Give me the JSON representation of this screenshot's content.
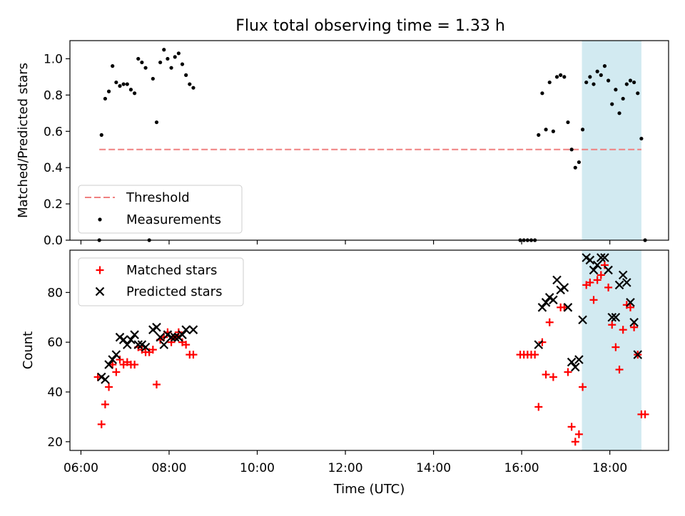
{
  "title": "Flux total observing time = 1.33 h",
  "colors": {
    "threshold": "#f08080",
    "measurement": "#000000",
    "matched": "#ff0000",
    "predicted": "#000000",
    "highlight": "#add8e6"
  },
  "chart_data": [
    {
      "type": "scatter",
      "ylabel": "Matched/Predicted stars",
      "ylim": [
        0,
        1.1
      ],
      "yticks": [
        0.0,
        0.2,
        0.4,
        0.6,
        0.8,
        1.0
      ],
      "ytick_labels": [
        "0.0",
        "0.2",
        "0.4",
        "0.6",
        "0.8",
        "1.0"
      ],
      "xlim": [
        "05:45",
        "19:20"
      ],
      "highlight_span": [
        "17:22",
        "18:43"
      ],
      "legend_position": "lower-left",
      "threshold": {
        "name": "Threshold",
        "value": 0.5,
        "x_range": [
          "06:25",
          "18:43"
        ]
      },
      "series": [
        {
          "name": "Measurements",
          "marker": "dot",
          "points": [
            [
              "06:25",
              0.0
            ],
            [
              "06:28",
              0.58
            ],
            [
              "06:33",
              0.78
            ],
            [
              "06:38",
              0.82
            ],
            [
              "06:43",
              0.96
            ],
            [
              "06:48",
              0.87
            ],
            [
              "06:53",
              0.85
            ],
            [
              "06:58",
              0.86
            ],
            [
              "07:03",
              0.86
            ],
            [
              "07:08",
              0.83
            ],
            [
              "07:13",
              0.81
            ],
            [
              "07:18",
              1.0
            ],
            [
              "07:23",
              0.98
            ],
            [
              "07:28",
              0.95
            ],
            [
              "07:33",
              0.0
            ],
            [
              "07:38",
              0.89
            ],
            [
              "07:43",
              0.65
            ],
            [
              "07:48",
              0.98
            ],
            [
              "07:53",
              1.05
            ],
            [
              "07:58",
              1.0
            ],
            [
              "08:03",
              0.95
            ],
            [
              "08:08",
              1.01
            ],
            [
              "08:13",
              1.03
            ],
            [
              "08:18",
              0.97
            ],
            [
              "08:23",
              0.91
            ],
            [
              "08:28",
              0.86
            ],
            [
              "08:33",
              0.84
            ],
            [
              "15:58",
              0.0
            ],
            [
              "16:03",
              0.0
            ],
            [
              "16:08",
              0.0
            ],
            [
              "16:13",
              0.0
            ],
            [
              "16:18",
              0.0
            ],
            [
              "16:23",
              0.58
            ],
            [
              "16:28",
              0.81
            ],
            [
              "16:33",
              0.61
            ],
            [
              "16:38",
              0.87
            ],
            [
              "16:43",
              0.6
            ],
            [
              "16:48",
              0.9
            ],
            [
              "16:53",
              0.91
            ],
            [
              "16:58",
              0.9
            ],
            [
              "17:03",
              0.65
            ],
            [
              "17:08",
              0.5
            ],
            [
              "17:13",
              0.4
            ],
            [
              "17:18",
              0.43
            ],
            [
              "17:23",
              0.61
            ],
            [
              "17:28",
              0.87
            ],
            [
              "17:33",
              0.9
            ],
            [
              "17:38",
              0.86
            ],
            [
              "17:43",
              0.93
            ],
            [
              "17:48",
              0.91
            ],
            [
              "17:53",
              0.96
            ],
            [
              "17:58",
              0.88
            ],
            [
              "18:03",
              0.75
            ],
            [
              "18:08",
              0.83
            ],
            [
              "18:13",
              0.7
            ],
            [
              "18:18",
              0.78
            ],
            [
              "18:23",
              0.86
            ],
            [
              "18:28",
              0.88
            ],
            [
              "18:33",
              0.87
            ],
            [
              "18:38",
              0.81
            ],
            [
              "18:43",
              0.56
            ],
            [
              "18:48",
              0.0
            ]
          ]
        }
      ]
    },
    {
      "type": "scatter",
      "xlabel": "Time (UTC)",
      "ylabel": "Count",
      "ylim": [
        16.5,
        97
      ],
      "yticks": [
        20,
        40,
        60,
        80
      ],
      "ytick_labels": [
        "20",
        "40",
        "60",
        "80"
      ],
      "xlim": [
        "05:45",
        "19:20"
      ],
      "xticks": [
        "06:00",
        "08:00",
        "10:00",
        "12:00",
        "14:00",
        "16:00",
        "18:00"
      ],
      "xtick_labels": [
        "06:00",
        "08:00",
        "10:00",
        "12:00",
        "14:00",
        "16:00",
        "18:00"
      ],
      "highlight_span": [
        "17:22",
        "18:43"
      ],
      "legend_position": "upper-left",
      "series": [
        {
          "name": "Matched stars",
          "marker": "plus",
          "points": [
            [
              "06:23",
              46
            ],
            [
              "06:28",
              27
            ],
            [
              "06:33",
              35
            ],
            [
              "06:38",
              42
            ],
            [
              "06:43",
              51
            ],
            [
              "06:48",
              48
            ],
            [
              "06:53",
              53
            ],
            [
              "06:58",
              51
            ],
            [
              "07:03",
              52
            ],
            [
              "07:08",
              51
            ],
            [
              "07:13",
              51
            ],
            [
              "07:18",
              58
            ],
            [
              "07:23",
              57
            ],
            [
              "07:28",
              56
            ],
            [
              "07:33",
              56
            ],
            [
              "07:38",
              57
            ],
            [
              "07:43",
              43
            ],
            [
              "07:48",
              61
            ],
            [
              "07:53",
              62
            ],
            [
              "07:58",
              64
            ],
            [
              "08:03",
              60
            ],
            [
              "08:08",
              62
            ],
            [
              "08:13",
              64
            ],
            [
              "08:18",
              60
            ],
            [
              "08:23",
              59
            ],
            [
              "08:28",
              55
            ],
            [
              "08:33",
              55
            ],
            [
              "15:58",
              55
            ],
            [
              "16:03",
              55
            ],
            [
              "16:08",
              55
            ],
            [
              "16:13",
              55
            ],
            [
              "16:18",
              55
            ],
            [
              "16:23",
              34
            ],
            [
              "16:28",
              60
            ],
            [
              "16:33",
              47
            ],
            [
              "16:38",
              68
            ],
            [
              "16:43",
              46
            ],
            [
              "16:53",
              74
            ],
            [
              "16:58",
              74
            ],
            [
              "17:03",
              48
            ],
            [
              "17:08",
              26
            ],
            [
              "17:13",
              20
            ],
            [
              "17:18",
              23
            ],
            [
              "17:23",
              42
            ],
            [
              "17:28",
              83
            ],
            [
              "17:33",
              84
            ],
            [
              "17:38",
              77
            ],
            [
              "17:43",
              85
            ],
            [
              "17:48",
              87
            ],
            [
              "17:53",
              91
            ],
            [
              "17:58",
              82
            ],
            [
              "18:03",
              67
            ],
            [
              "18:08",
              58
            ],
            [
              "18:13",
              49
            ],
            [
              "18:18",
              65
            ],
            [
              "18:23",
              75
            ],
            [
              "18:28",
              74
            ],
            [
              "18:33",
              66
            ],
            [
              "18:38",
              55
            ],
            [
              "18:43",
              31
            ],
            [
              "18:48",
              31
            ]
          ]
        },
        {
          "name": "Predicted stars",
          "marker": "x",
          "points": [
            [
              "06:28",
              46
            ],
            [
              "06:33",
              45
            ],
            [
              "06:38",
              51
            ],
            [
              "06:43",
              53
            ],
            [
              "06:48",
              55
            ],
            [
              "06:53",
              62
            ],
            [
              "06:58",
              61
            ],
            [
              "07:03",
              59
            ],
            [
              "07:08",
              61
            ],
            [
              "07:13",
              63
            ],
            [
              "07:18",
              59
            ],
            [
              "07:23",
              59
            ],
            [
              "07:28",
              58
            ],
            [
              "07:38",
              65
            ],
            [
              "07:43",
              66
            ],
            [
              "07:48",
              62
            ],
            [
              "07:53",
              59
            ],
            [
              "07:58",
              63
            ],
            [
              "08:03",
              62
            ],
            [
              "08:08",
              62
            ],
            [
              "08:13",
              62
            ],
            [
              "08:18",
              63
            ],
            [
              "08:23",
              65
            ],
            [
              "08:33",
              65
            ],
            [
              "16:23",
              59
            ],
            [
              "16:28",
              74
            ],
            [
              "16:33",
              76
            ],
            [
              "16:38",
              78
            ],
            [
              "16:43",
              77
            ],
            [
              "16:48",
              85
            ],
            [
              "16:53",
              81
            ],
            [
              "16:58",
              82
            ],
            [
              "17:03",
              74
            ],
            [
              "17:08",
              52
            ],
            [
              "17:13",
              50
            ],
            [
              "17:18",
              53
            ],
            [
              "17:23",
              69
            ],
            [
              "17:28",
              94
            ],
            [
              "17:33",
              93
            ],
            [
              "17:38",
              89
            ],
            [
              "17:43",
              91
            ],
            [
              "17:48",
              94
            ],
            [
              "17:53",
              94
            ],
            [
              "17:58",
              89
            ],
            [
              "18:03",
              70
            ],
            [
              "18:08",
              70
            ],
            [
              "18:13",
              83
            ],
            [
              "18:18",
              87
            ],
            [
              "18:23",
              84
            ],
            [
              "18:28",
              76
            ],
            [
              "18:33",
              68
            ],
            [
              "18:38",
              55
            ]
          ]
        }
      ]
    }
  ]
}
